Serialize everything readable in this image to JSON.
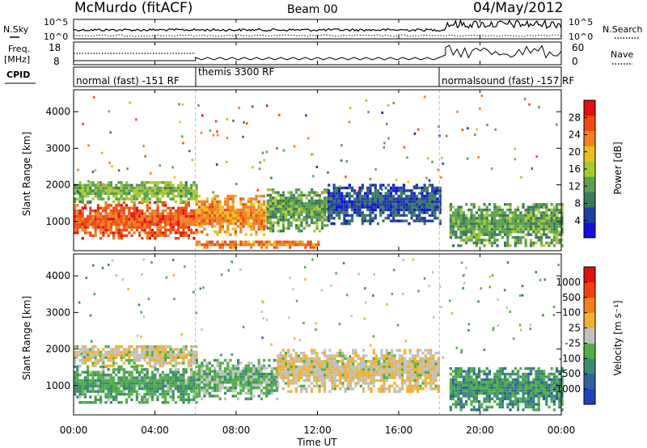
{
  "header": {
    "station": "McMurdo (fitACF)",
    "beam": "Beam 00",
    "date": "04/May/2012"
  },
  "noise_panel": {
    "left_label": "N.Sky",
    "right_label": "N.Search",
    "left_ticks": [
      "10^5",
      "10^0"
    ],
    "right_ticks": [
      "10^5",
      "10^0"
    ]
  },
  "freq_panel": {
    "left_label_line1": "Freq.",
    "left_label_line2": "[MHz]",
    "right_label": "Nave",
    "left_ticks": [
      "18",
      "8"
    ],
    "right_ticks": [
      "60",
      "0"
    ]
  },
  "cpid_panel": {
    "label": "CPID",
    "modes": [
      {
        "name": "normal (fast) -151 RF",
        "start_hour": 0
      },
      {
        "name": "themis 3300 RF",
        "start_hour": 6
      },
      {
        "name": "normalsound (fast) -157 RF",
        "start_hour": 18
      }
    ]
  },
  "chart_data": [
    {
      "type": "heatmap",
      "name": "power",
      "ylabel": "Slant Range [km]",
      "y_ticks": [
        1000,
        2000,
        3000,
        4000
      ],
      "ylim": [
        200,
        4600
      ],
      "xlim_hours": [
        0,
        24
      ],
      "colorbar_label": "Power [dB]",
      "colorbar_ticks": [
        "28",
        "24",
        "20",
        "16",
        "12",
        "8",
        "4"
      ],
      "colorbar_colors": [
        "#1010e0",
        "#2040a0",
        "#3a7a5a",
        "#5aa050",
        "#a8c830",
        "#e8c020",
        "#f08020",
        "#f04a10",
        "#e01010"
      ],
      "vmin": 0,
      "vmax": 32,
      "regions": [
        {
          "t0": 0.0,
          "t1": 6.0,
          "r0": 500,
          "r1": 1500,
          "v": 26
        },
        {
          "t0": 0.0,
          "t1": 6.0,
          "r0": 1500,
          "r1": 2100,
          "v": 14
        },
        {
          "t0": 6.0,
          "t1": 9.5,
          "r0": 600,
          "r1": 1700,
          "v": 22
        },
        {
          "t0": 9.5,
          "t1": 12.5,
          "r0": 700,
          "r1": 1900,
          "v": 12
        },
        {
          "t0": 12.5,
          "t1": 18.0,
          "r0": 900,
          "r1": 2000,
          "v": 6
        },
        {
          "t0": 6.0,
          "t1": 12.0,
          "r0": 250,
          "r1": 450,
          "v": 24
        },
        {
          "t0": 18.5,
          "t1": 24.0,
          "r0": 300,
          "r1": 1500,
          "v": 12
        }
      ]
    },
    {
      "type": "heatmap",
      "name": "velocity",
      "ylabel": "Slant Range [km]",
      "y_ticks": [
        1000,
        2000,
        3000,
        4000
      ],
      "ylim": [
        200,
        4600
      ],
      "xlim_hours": [
        0,
        24
      ],
      "colorbar_label": "Velocity [m s⁻¹]",
      "colorbar_ticks": [
        "1000",
        "500",
        "100",
        "25",
        "-25",
        "-100",
        "-500",
        "-1000"
      ],
      "colorbar_colors": [
        "#2040c0",
        "#3060a0",
        "#3a8a70",
        "#50b040",
        "#c0c0c0",
        "#f0b030",
        "#f08020",
        "#f04010",
        "#e01010"
      ],
      "vmin": -1000,
      "vmax": 1000,
      "regions": [
        {
          "t0": 0.0,
          "t1": 6.0,
          "r0": 500,
          "r1": 1500,
          "v": -300
        },
        {
          "t0": 0.0,
          "t1": 6.0,
          "r0": 1500,
          "r1": 2100,
          "v": 60
        },
        {
          "t0": 6.0,
          "t1": 10.0,
          "r0": 600,
          "r1": 1700,
          "v": -200
        },
        {
          "t0": 10.0,
          "t1": 18.0,
          "r0": 800,
          "r1": 2000,
          "v": 80
        },
        {
          "t0": 18.5,
          "t1": 24.0,
          "r0": 300,
          "r1": 1500,
          "v": -400
        }
      ]
    }
  ],
  "x_axis": {
    "label": "Time UT",
    "ticks": [
      "00:00",
      "04:00",
      "08:00",
      "12:00",
      "16:00",
      "20:00",
      "00:00"
    ]
  }
}
